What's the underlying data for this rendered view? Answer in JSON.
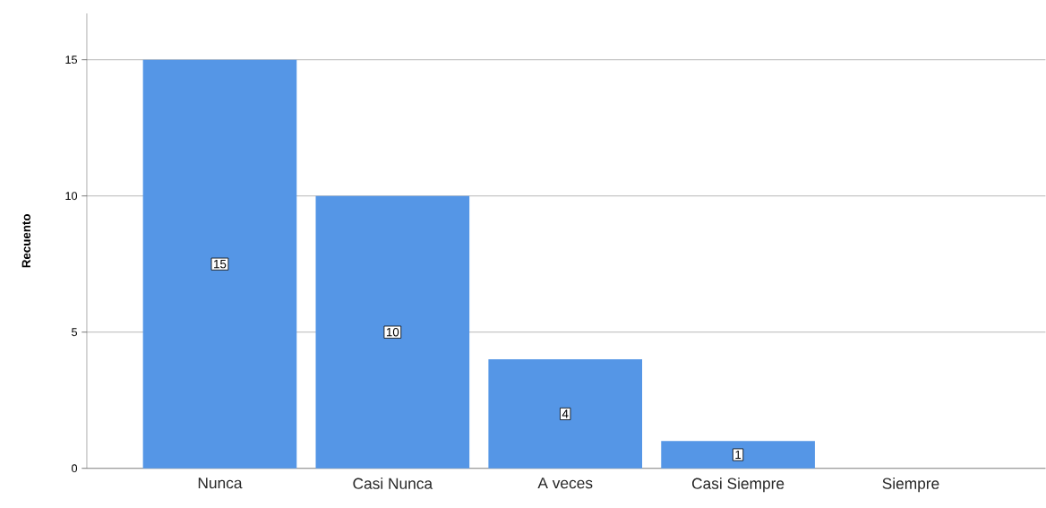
{
  "chart_data": {
    "type": "bar",
    "ylabel": "Recuento",
    "categories": [
      "Nunca",
      "Casi Nunca",
      "A veces",
      "Casi Siempre",
      "Siempre"
    ],
    "values": [
      15,
      10,
      4,
      1,
      0
    ],
    "value_labels": [
      "15",
      "10",
      "4",
      "1",
      null
    ],
    "color": "#5596e6",
    "ylim": [
      0,
      16.7
    ],
    "yticks": [
      0,
      5,
      10,
      15
    ],
    "grid": "y"
  }
}
